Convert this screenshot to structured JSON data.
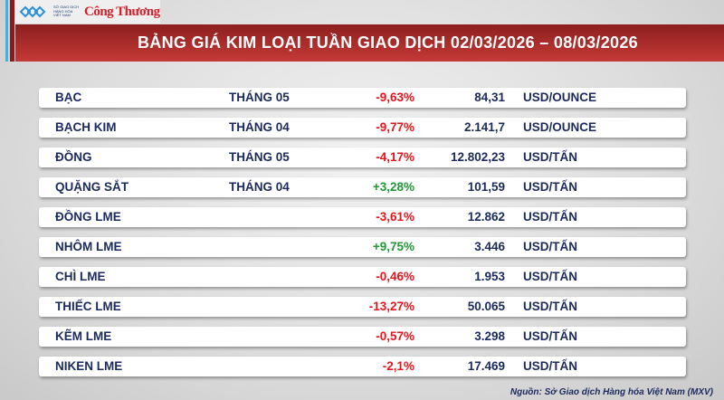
{
  "logo": {
    "exchange_text": "SỞ GIAO DỊCH HÀNG HÓA VIỆT NAM",
    "brand": "Công Thương"
  },
  "title": "BẢNG GIÁ KIM LOẠI TUẦN GIAO DỊCH 02/03/2026 – 08/03/2026",
  "colors": {
    "header": "#b5302e",
    "negative": "#e8141c",
    "positive": "#1f9a34",
    "text": "#1b2a5e"
  },
  "rows": [
    {
      "name": "BẠC",
      "month": "THÁNG 05",
      "change": "-9,63%",
      "price": "84,31",
      "unit": "USD/OUNCE",
      "dir": "neg"
    },
    {
      "name": "BẠCH KIM",
      "month": "THÁNG 04",
      "change": "-9,77%",
      "price": "2.141,7",
      "unit": "USD/OUNCE",
      "dir": "neg"
    },
    {
      "name": "ĐỒNG",
      "month": "THÁNG 05",
      "change": "-4,17%",
      "price": "12.802,23",
      "unit": "USD/TẤN",
      "dir": "neg"
    },
    {
      "name": "QUẶNG SẮT",
      "month": "THÁNG 04",
      "change": "+3,28%",
      "price": "101,59",
      "unit": "USD/TẤN",
      "dir": "pos"
    },
    {
      "name": "ĐỒNG LME",
      "month": "",
      "change": "-3,61%",
      "price": "12.862",
      "unit": "USD/TẤN",
      "dir": "neg"
    },
    {
      "name": "NHÔM LME",
      "month": "",
      "change": "+9,75%",
      "price": "3.446",
      "unit": "USD/TẤN",
      "dir": "pos"
    },
    {
      "name": "CHÌ LME",
      "month": "",
      "change": "-0,46%",
      "price": "1.953",
      "unit": "USD/TẤN",
      "dir": "neg"
    },
    {
      "name": "THIẾC LME",
      "month": "",
      "change": "-13,27%",
      "price": "50.065",
      "unit": "USD/TẤN",
      "dir": "neg"
    },
    {
      "name": "KẼM LME",
      "month": "",
      "change": "-0,57%",
      "price": "3.298",
      "unit": "USD/TẤN",
      "dir": "neg"
    },
    {
      "name": "NIKEN LME",
      "month": "",
      "change": "-2,1%",
      "price": "17.469",
      "unit": "USD/TẤN",
      "dir": "neg"
    }
  ],
  "source": "Nguồn: Sở Giao dịch Hàng hóa Việt Nam (MXV)"
}
